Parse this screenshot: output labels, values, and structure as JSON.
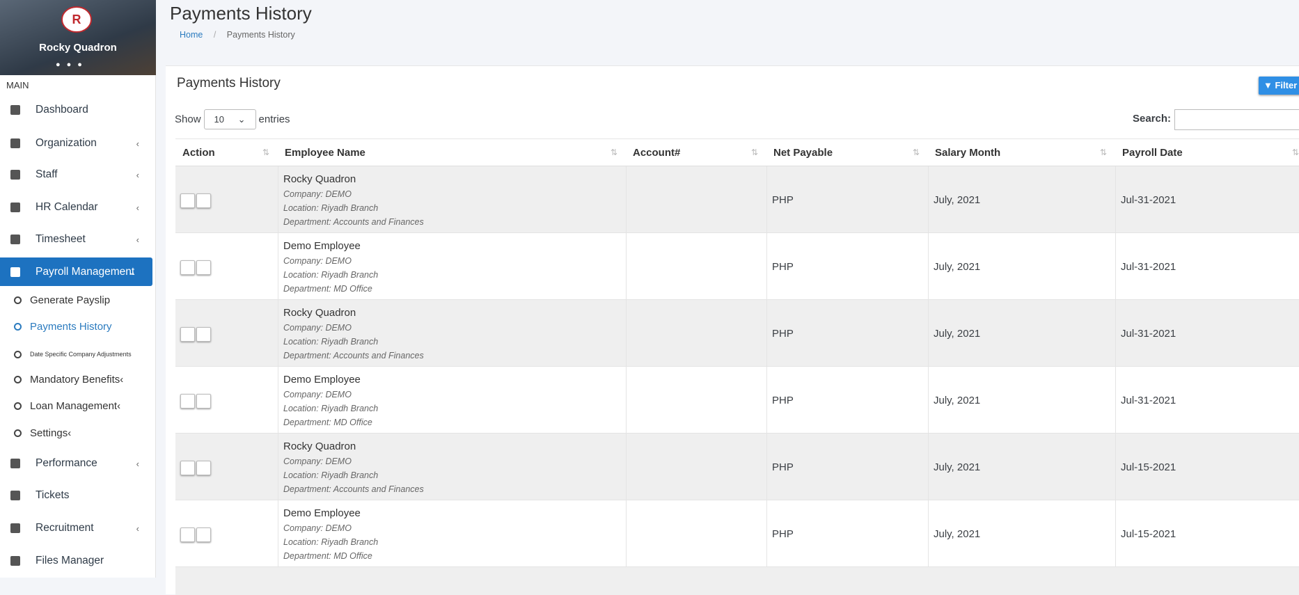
{
  "sidebar": {
    "user_name": "Rocky Quadron",
    "section": "MAIN",
    "menu": [
      "Dashboard",
      "Organization",
      "Staff",
      "HR Calendar",
      "Timesheet",
      "Payroll Management"
    ],
    "submenu": [
      "Generate Payslip",
      "Payments History",
      "Date Specific Company Adjustments",
      "Mandatory Benefits",
      "Loan Management",
      "Settings"
    ],
    "menu_bottom": [
      "Performance",
      "Tickets",
      "Recruitment",
      "Files Manager"
    ]
  },
  "header": {
    "title": "Payments History",
    "breadcrumb": [
      "Home",
      "Payments History"
    ]
  },
  "card": {
    "title": "Payments History",
    "filter": "Filter",
    "show": "Show",
    "page_size": "10",
    "entries": "entries",
    "search": "Search:"
  },
  "table": {
    "columns": [
      "Action",
      "Employee Name",
      "Account#",
      "Net Payable",
      "Salary Month",
      "Payroll Date"
    ],
    "rows": [
      {
        "name": "Rocky Quadron",
        "company": "Company: DEMO",
        "location": "Location: Riyadh Branch",
        "department": "Department: Accounts and Finances",
        "net_payable": "PHP",
        "salary_month": "July, 2021",
        "payroll_date": "Jul-31-2021"
      },
      {
        "name": "Demo Employee",
        "company": "Company: DEMO",
        "location": "Location: Riyadh Branch",
        "department": "Department: MD Office",
        "net_payable": "PHP",
        "salary_month": "July, 2021",
        "payroll_date": "Jul-31-2021"
      },
      {
        "name": "Rocky Quadron",
        "company": "Company: DEMO",
        "location": "Location: Riyadh Branch",
        "department": "Department: Accounts and Finances",
        "net_payable": "PHP",
        "salary_month": "July, 2021",
        "payroll_date": "Jul-31-2021"
      },
      {
        "name": "Demo Employee",
        "company": "Company: DEMO",
        "location": "Location: Riyadh Branch",
        "department": "Department: MD Office",
        "net_payable": "PHP",
        "salary_month": "July, 2021",
        "payroll_date": "Jul-31-2021"
      },
      {
        "name": "Rocky Quadron",
        "company": "Company: DEMO",
        "location": "Location: Riyadh Branch",
        "department": "Department: Accounts and Finances",
        "net_payable": "PHP",
        "salary_month": "July, 2021",
        "payroll_date": "Jul-15-2021"
      },
      {
        "name": "Demo Employee",
        "company": "Company: DEMO",
        "location": "Location: Riyadh Branch",
        "department": "Department: MD Office",
        "net_payable": "PHP",
        "salary_month": "July, 2021",
        "payroll_date": "Jul-15-2021"
      }
    ]
  }
}
